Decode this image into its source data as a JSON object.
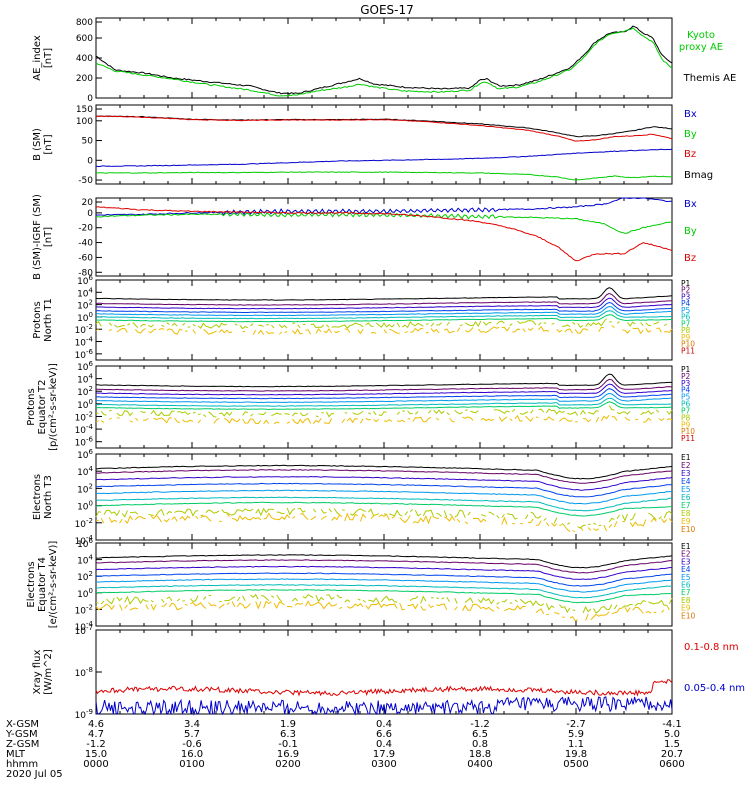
{
  "title": "GOES-17",
  "date_label": "2020 Jul 05",
  "colors": {
    "black": "#000000",
    "green": "#00cc00",
    "blue": "#0000cc",
    "red": "#dd0000",
    "P": [
      "#000000",
      "#660066",
      "#3300cc",
      "#0044ee",
      "#0099ee",
      "#00bbbb",
      "#00cc66",
      "#aacc00",
      "#eebb00",
      "#dd7700",
      "#cc0000"
    ],
    "E": [
      "#000000",
      "#660066",
      "#3300cc",
      "#0044ee",
      "#0099ee",
      "#00bbbb",
      "#00cc66",
      "#aacc00",
      "#eebb00",
      "#dd7700",
      "#cc0000"
    ]
  },
  "ephemeris": {
    "row_labels": [
      "X-GSM",
      "Y-GSM",
      "Z-GSM",
      "MLT",
      "hhmm"
    ],
    "columns": [
      [
        "4.6",
        "4.7",
        "-1.2",
        "15.0",
        "0000"
      ],
      [
        "3.4",
        "5.7",
        "-0.6",
        "16.0",
        "0100"
      ],
      [
        "1.9",
        "6.3",
        "-0.1",
        "16.9",
        "0200"
      ],
      [
        "0.4",
        "6.6",
        "0.4",
        "17.9",
        "0300"
      ],
      [
        "-1.2",
        "6.5",
        "0.8",
        "18.8",
        "0400"
      ],
      [
        "-2.7",
        "5.9",
        "1.1",
        "19.8",
        "0500"
      ],
      [
        "-4.1",
        "5.0",
        "1.5",
        "20.7",
        "0600"
      ]
    ]
  },
  "chart_data": [
    {
      "type": "line",
      "ylabel": "AE_index\n[nT]",
      "ylim": [
        0,
        800
      ],
      "y_ticks": [
        "800",
        "600",
        "400",
        "200",
        "0"
      ],
      "x_range_hours": [
        0,
        6
      ],
      "legend": [
        {
          "text": "Kyoto\nproxy AE",
          "color": "green"
        },
        {
          "text": "Themis AE",
          "color": "black"
        }
      ],
      "series": [
        {
          "name": "Themis AE",
          "color": "black",
          "points": [
            [
              0,
              420
            ],
            [
              0.2,
              280
            ],
            [
              0.5,
              250
            ],
            [
              0.8,
              200
            ],
            [
              1.2,
              160
            ],
            [
              1.6,
              120
            ],
            [
              1.9,
              50
            ],
            [
              2.1,
              45
            ],
            [
              2.3,
              90
            ],
            [
              2.6,
              160
            ],
            [
              2.75,
              195
            ],
            [
              2.9,
              140
            ],
            [
              3.2,
              110
            ],
            [
              3.6,
              90
            ],
            [
              3.9,
              100
            ],
            [
              4.0,
              180
            ],
            [
              4.07,
              190
            ],
            [
              4.2,
              120
            ],
            [
              4.4,
              130
            ],
            [
              4.6,
              180
            ],
            [
              4.8,
              250
            ],
            [
              4.95,
              310
            ],
            [
              5.1,
              450
            ],
            [
              5.2,
              560
            ],
            [
              5.35,
              650
            ],
            [
              5.5,
              660
            ],
            [
              5.6,
              720
            ],
            [
              5.7,
              650
            ],
            [
              5.8,
              600
            ],
            [
              5.9,
              420
            ],
            [
              6.0,
              350
            ]
          ]
        },
        {
          "name": "Kyoto proxy AE",
          "color": "green",
          "points": [
            [
              0,
              350
            ],
            [
              0.2,
              270
            ],
            [
              0.5,
              230
            ],
            [
              0.8,
              190
            ],
            [
              1.2,
              130
            ],
            [
              1.6,
              80
            ],
            [
              1.9,
              25
            ],
            [
              2.1,
              30
            ],
            [
              2.3,
              70
            ],
            [
              2.6,
              110
            ],
            [
              2.75,
              140
            ],
            [
              2.9,
              110
            ],
            [
              3.2,
              70
            ],
            [
              3.6,
              60
            ],
            [
              3.9,
              80
            ],
            [
              4.0,
              150
            ],
            [
              4.07,
              160
            ],
            [
              4.2,
              90
            ],
            [
              4.4,
              110
            ],
            [
              4.6,
              160
            ],
            [
              4.8,
              230
            ],
            [
              4.95,
              290
            ],
            [
              5.1,
              420
            ],
            [
              5.2,
              540
            ],
            [
              5.35,
              640
            ],
            [
              5.5,
              670
            ],
            [
              5.6,
              700
            ],
            [
              5.7,
              620
            ],
            [
              5.8,
              560
            ],
            [
              5.9,
              380
            ],
            [
              6.0,
              300
            ]
          ]
        }
      ]
    },
    {
      "type": "line",
      "ylabel": "B (SM)\n[nT]",
      "ylim": [
        -60,
        140
      ],
      "y_ticks": [
        "150",
        "100",
        "50",
        "0",
        "-50"
      ],
      "x_range_hours": [
        0,
        6
      ],
      "legend": [
        {
          "text": "Bx",
          "color": "blue"
        },
        {
          "text": "By",
          "color": "green"
        },
        {
          "text": "Bz",
          "color": "red"
        },
        {
          "text": "Bmag",
          "color": "black"
        }
      ],
      "series": [
        {
          "name": "Bmag",
          "color": "black",
          "points": [
            [
              0,
              112
            ],
            [
              0.5,
              110
            ],
            [
              1.0,
              104
            ],
            [
              1.5,
              102
            ],
            [
              2.0,
              103
            ],
            [
              2.5,
              103
            ],
            [
              3.0,
              104
            ],
            [
              3.5,
              99
            ],
            [
              4.0,
              92
            ],
            [
              4.5,
              82
            ],
            [
              4.8,
              70
            ],
            [
              5.0,
              60
            ],
            [
              5.2,
              62
            ],
            [
              5.4,
              68
            ],
            [
              5.6,
              75
            ],
            [
              5.8,
              85
            ],
            [
              6.0,
              80
            ]
          ]
        },
        {
          "name": "Bz",
          "color": "red",
          "points": [
            [
              0,
              112
            ],
            [
              0.5,
              109
            ],
            [
              1.0,
              103
            ],
            [
              1.5,
              101
            ],
            [
              2.0,
              102
            ],
            [
              2.5,
              102
            ],
            [
              3.0,
              103
            ],
            [
              3.5,
              97
            ],
            [
              4.0,
              88
            ],
            [
              4.5,
              76
            ],
            [
              4.8,
              62
            ],
            [
              5.0,
              48
            ],
            [
              5.2,
              52
            ],
            [
              5.4,
              60
            ],
            [
              5.6,
              62
            ],
            [
              5.8,
              66
            ],
            [
              6.0,
              55
            ]
          ]
        },
        {
          "name": "Bx",
          "color": "blue",
          "points": [
            [
              0,
              -15
            ],
            [
              0.5,
              -14
            ],
            [
              1.0,
              -12
            ],
            [
              1.5,
              -10
            ],
            [
              2.0,
              -6
            ],
            [
              2.5,
              -2
            ],
            [
              3.0,
              0
            ],
            [
              3.5,
              2
            ],
            [
              4.0,
              5
            ],
            [
              4.5,
              10
            ],
            [
              5.0,
              18
            ],
            [
              5.5,
              24
            ],
            [
              6.0,
              28
            ]
          ]
        },
        {
          "name": "By",
          "color": "green",
          "points": [
            [
              0,
              -32
            ],
            [
              0.5,
              -32
            ],
            [
              1.0,
              -31
            ],
            [
              1.5,
              -31
            ],
            [
              2.0,
              -30
            ],
            [
              2.5,
              -30
            ],
            [
              3.0,
              -30
            ],
            [
              3.5,
              -31
            ],
            [
              4.0,
              -32
            ],
            [
              4.5,
              -36
            ],
            [
              4.8,
              -42
            ],
            [
              5.0,
              -50
            ],
            [
              5.2,
              -45
            ],
            [
              5.4,
              -40
            ],
            [
              5.6,
              -44
            ],
            [
              5.8,
              -40
            ],
            [
              6.0,
              -42
            ]
          ]
        }
      ]
    },
    {
      "type": "line",
      "ylabel": "B (SM)-IGRF (SM)\n[nT]",
      "ylim": [
        -85,
        20
      ],
      "y_ticks": [
        "20",
        "0",
        "-20",
        "-40",
        "-60",
        "-80"
      ],
      "x_range_hours": [
        0,
        6
      ],
      "legend": [
        {
          "text": "Bx",
          "color": "blue"
        },
        {
          "text": "By",
          "color": "green"
        },
        {
          "text": "Bz",
          "color": "red"
        }
      ],
      "series": [
        {
          "name": "Bx",
          "color": "blue",
          "points": [
            [
              0,
              -3
            ],
            [
              0.5,
              -2
            ],
            [
              1.0,
              0
            ],
            [
              1.5,
              1
            ],
            [
              2.0,
              2
            ],
            [
              2.5,
              2
            ],
            [
              3.0,
              2
            ],
            [
              3.5,
              3
            ],
            [
              4.0,
              4
            ],
            [
              4.5,
              5
            ],
            [
              5.0,
              8
            ],
            [
              5.3,
              12
            ],
            [
              5.5,
              20
            ],
            [
              5.7,
              20
            ],
            [
              6.0,
              15
            ]
          ]
        },
        {
          "name": "By",
          "color": "green",
          "points": [
            [
              0,
              -5
            ],
            [
              0.5,
              -3
            ],
            [
              1.0,
              -2
            ],
            [
              1.5,
              -2
            ],
            [
              2.0,
              -3
            ],
            [
              2.5,
              -2
            ],
            [
              3.0,
              -3
            ],
            [
              3.5,
              -4
            ],
            [
              4.0,
              -5
            ],
            [
              4.5,
              -6
            ],
            [
              5.0,
              -8
            ],
            [
              5.3,
              -15
            ],
            [
              5.5,
              -28
            ],
            [
              5.7,
              -20
            ],
            [
              6.0,
              -12
            ]
          ]
        },
        {
          "name": "Bz",
          "color": "red",
          "points": [
            [
              0,
              8
            ],
            [
              0.5,
              4
            ],
            [
              1.0,
              2
            ],
            [
              1.5,
              1
            ],
            [
              2.0,
              0
            ],
            [
              2.5,
              0
            ],
            [
              3.0,
              -1
            ],
            [
              3.5,
              -5
            ],
            [
              4.0,
              -12
            ],
            [
              4.3,
              -20
            ],
            [
              4.6,
              -32
            ],
            [
              4.8,
              -45
            ],
            [
              5.0,
              -65
            ],
            [
              5.2,
              -55
            ],
            [
              5.5,
              -55
            ],
            [
              5.7,
              -40
            ],
            [
              6.0,
              -50
            ]
          ]
        }
      ]
    },
    {
      "type": "line",
      "log_scale": true,
      "ylabel": "Protons\nNorth T1",
      "ylim_exp": [
        -7,
        6
      ],
      "y_ticks": [
        "10^6",
        "10^4",
        "10^2",
        "10^0",
        "10^-2",
        "10^-4",
        "10^-6"
      ],
      "x_range_hours": [
        0,
        6
      ],
      "channels": [
        "P1",
        "P2",
        "P3",
        "P4",
        "P5",
        "P6",
        "P7",
        "P8",
        "P9",
        "P10",
        "P11"
      ],
      "base_log_levels": [
        3.0,
        2.2,
        1.6,
        1.0,
        0.5,
        0.0,
        -0.5,
        -1.2,
        -2.2
      ],
      "event_peak_log_boost": 1.8
    },
    {
      "type": "line",
      "log_scale": true,
      "ylabel": "Protons\nEquator T2\n[p/(cm²-s-sr-keV)]",
      "ylim_exp": [
        -7,
        6
      ],
      "y_ticks": [
        "10^6",
        "10^4",
        "10^2",
        "10^0",
        "10^-2",
        "10^-4",
        "10^-6"
      ],
      "x_range_hours": [
        0,
        6
      ],
      "channels": [
        "P1",
        "P2",
        "P3",
        "P4",
        "P5",
        "P6",
        "P7",
        "P8",
        "P9",
        "P10",
        "P11"
      ],
      "base_log_levels": [
        3.0,
        2.3,
        1.7,
        1.1,
        0.5,
        -0.1,
        -0.6,
        -1.4,
        -2.5
      ],
      "event_peak_log_boost": 1.8
    },
    {
      "type": "line",
      "log_scale": true,
      "ylabel": "Electrons\nNorth T3",
      "ylim_exp": [
        -4,
        6
      ],
      "y_ticks": [
        "10^6",
        "10^4",
        "10^2",
        "10^0",
        "10^-2",
        "10^-4"
      ],
      "x_range_hours": [
        0,
        6
      ],
      "channels": [
        "E1",
        "E2",
        "E3",
        "E4",
        "E5",
        "E6",
        "E7",
        "E8",
        "E9",
        "E10"
      ],
      "base_log_levels": [
        4.3,
        3.8,
        3.0,
        2.2,
        1.4,
        0.6,
        0.0,
        -1.0,
        -1.7
      ],
      "event_peak_log_boost": 1.2
    },
    {
      "type": "line",
      "log_scale": true,
      "ylabel": "Electrons\nEquator T4\n[e/(cm²-s-sr-keV)]",
      "ylim_exp": [
        -4,
        6
      ],
      "y_ticks": [
        "10^6",
        "10^4",
        "10^2",
        "10^0",
        "10^-2",
        "10^-4"
      ],
      "x_range_hours": [
        0,
        6
      ],
      "channels": [
        "E1",
        "E2",
        "E3",
        "E4",
        "E5",
        "E6",
        "E7",
        "E8",
        "E9",
        "E10"
      ],
      "base_log_levels": [
        4.2,
        3.6,
        2.8,
        2.0,
        1.3,
        0.6,
        0.0,
        -1.0,
        -1.8
      ],
      "event_peak_log_boost": 1.2
    },
    {
      "type": "line",
      "log_scale": true,
      "ylabel": "Xray flux\n[W/m^2]",
      "ylim_exp": [
        -9,
        -7
      ],
      "y_ticks": [
        "10^-7",
        "10^-8",
        "10^-9"
      ],
      "x_range_hours": [
        0,
        6
      ],
      "legend": [
        {
          "text": "0.1-0.8 nm",
          "color": "red"
        },
        {
          "text": "0.05-0.4 nm",
          "color": "blue"
        }
      ],
      "series": [
        {
          "name": "0.1-0.8 nm",
          "color": "red",
          "mean_log": -8.45,
          "jitter": 0.06
        },
        {
          "name": "0.05-0.4 nm",
          "color": "blue",
          "mean_log": -8.85,
          "jitter": 0.18
        }
      ]
    }
  ]
}
